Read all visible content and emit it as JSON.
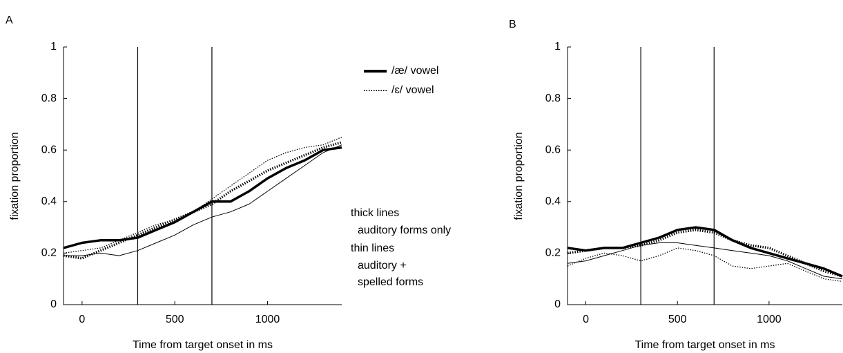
{
  "chart_data": [
    {
      "type": "line",
      "panel": "A",
      "x_label": "Time from target onset in ms",
      "y_label": "fixation proportion",
      "x": [
        -100,
        0,
        100,
        200,
        300,
        400,
        500,
        600,
        700,
        800,
        900,
        1000,
        1100,
        1200,
        1300,
        1400
      ],
      "xlim": [
        -100,
        1400
      ],
      "xticks": [
        0,
        500,
        1000
      ],
      "ylim": [
        0,
        1
      ],
      "yticks": [
        0,
        0.2,
        0.4,
        0.6,
        0.8,
        1
      ],
      "vlines": [
        300,
        700
      ],
      "series": [
        {
          "color": "#000",
          "width": 3.5,
          "dash": "solid",
          "values": [
            0.22,
            0.24,
            0.25,
            0.25,
            0.26,
            0.29,
            0.32,
            0.36,
            0.4,
            0.4,
            0.44,
            0.49,
            0.53,
            0.56,
            0.6,
            0.61
          ]
        },
        {
          "color": "#000",
          "width": 3.5,
          "dash": "dotted",
          "values": [
            0.19,
            0.18,
            0.21,
            0.24,
            0.27,
            0.3,
            0.33,
            0.36,
            0.39,
            0.44,
            0.48,
            0.52,
            0.55,
            0.58,
            0.61,
            0.63
          ]
        },
        {
          "color": "#000",
          "width": 1,
          "dash": "solid",
          "values": [
            0.19,
            0.19,
            0.2,
            0.19,
            0.21,
            0.24,
            0.27,
            0.31,
            0.34,
            0.36,
            0.39,
            0.44,
            0.49,
            0.54,
            0.59,
            0.62
          ]
        },
        {
          "color": "#000",
          "width": 1.3,
          "dash": "dotted",
          "values": [
            0.2,
            0.21,
            0.22,
            0.25,
            0.28,
            0.31,
            0.33,
            0.36,
            0.41,
            0.46,
            0.51,
            0.56,
            0.59,
            0.61,
            0.62,
            0.65
          ]
        }
      ],
      "legend": [
        {
          "label": "/æ/  vowel",
          "width": 4,
          "dash": "solid"
        },
        {
          "label": "/ɛ/  vowel",
          "width": 2,
          "dash": "dotted"
        }
      ],
      "annotations": [
        "thick lines",
        "auditory forms only",
        "thin lines",
        "auditory +",
        "spelled forms"
      ]
    },
    {
      "type": "line",
      "panel": "B",
      "x_label": "Time from target onset in ms",
      "y_label": "fixation proportion",
      "x": [
        -100,
        0,
        100,
        200,
        300,
        400,
        500,
        600,
        700,
        800,
        900,
        1000,
        1100,
        1200,
        1300,
        1400
      ],
      "xlim": [
        -100,
        1400
      ],
      "xticks": [
        0,
        500,
        1000
      ],
      "ylim": [
        0,
        1
      ],
      "yticks": [
        0,
        0.2,
        0.4,
        0.6,
        0.8,
        1
      ],
      "vlines": [
        300,
        700
      ],
      "series": [
        {
          "color": "#000",
          "width": 3.5,
          "dash": "solid",
          "values": [
            0.22,
            0.21,
            0.22,
            0.22,
            0.24,
            0.26,
            0.29,
            0.3,
            0.29,
            0.25,
            0.22,
            0.2,
            0.18,
            0.16,
            0.14,
            0.11
          ]
        },
        {
          "color": "#000",
          "width": 3.5,
          "dash": "dotted",
          "values": [
            0.2,
            0.21,
            0.22,
            0.22,
            0.23,
            0.25,
            0.28,
            0.29,
            0.28,
            0.25,
            0.23,
            0.22,
            0.19,
            0.16,
            0.13,
            0.11
          ]
        },
        {
          "color": "#000",
          "width": 1,
          "dash": "solid",
          "values": [
            0.16,
            0.17,
            0.19,
            0.21,
            0.23,
            0.24,
            0.24,
            0.23,
            0.22,
            0.21,
            0.2,
            0.19,
            0.17,
            0.14,
            0.11,
            0.1
          ]
        },
        {
          "color": "#000",
          "width": 1.3,
          "dash": "dotted",
          "values": [
            0.15,
            0.18,
            0.2,
            0.19,
            0.17,
            0.19,
            0.22,
            0.21,
            0.19,
            0.15,
            0.14,
            0.15,
            0.16,
            0.13,
            0.1,
            0.09
          ]
        }
      ]
    }
  ]
}
